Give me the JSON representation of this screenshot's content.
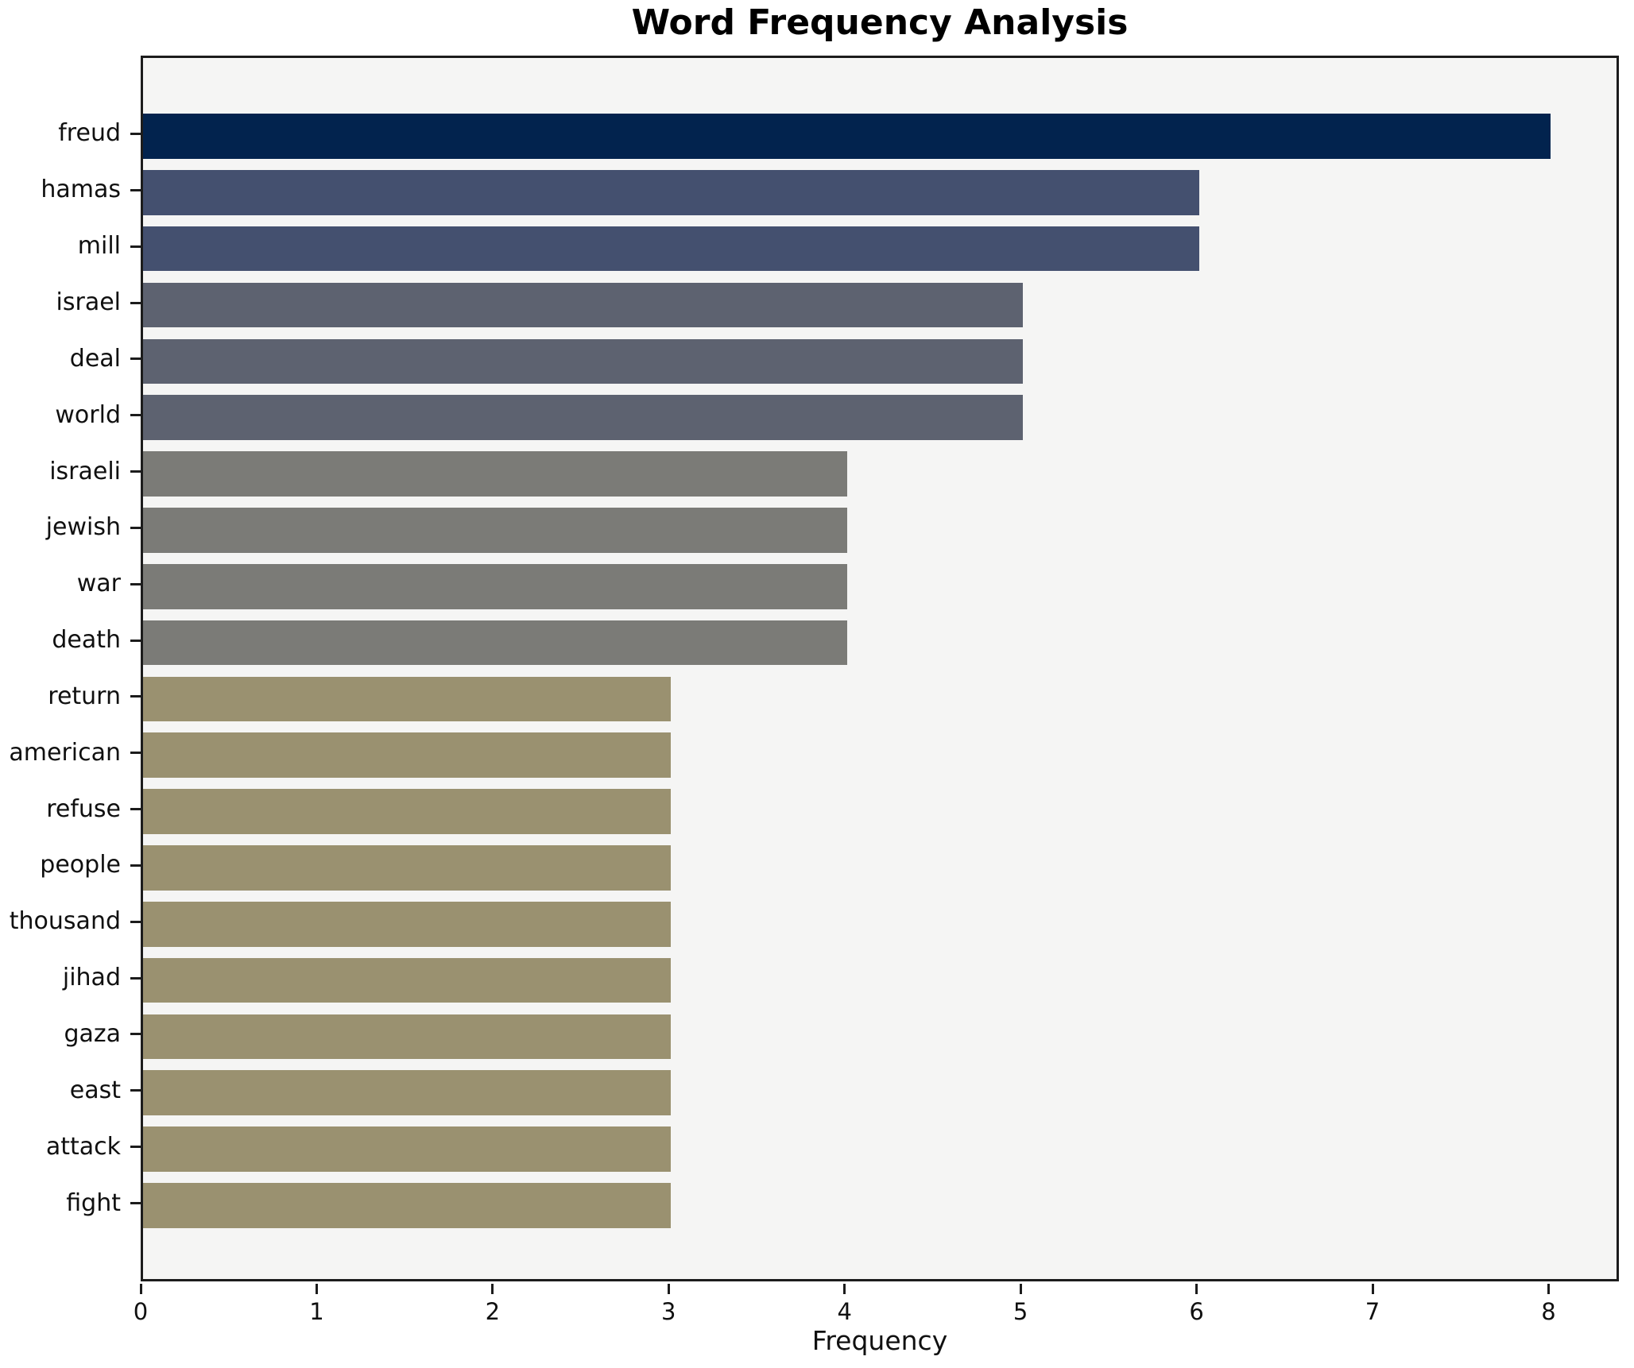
{
  "title": "Word Frequency Analysis",
  "chart_data": {
    "type": "bar",
    "orientation": "horizontal",
    "title": "Word Frequency Analysis",
    "xlabel": "Frequency",
    "ylabel": "",
    "categories": [
      "freud",
      "hamas",
      "mill",
      "israel",
      "deal",
      "world",
      "israeli",
      "jewish",
      "war",
      "death",
      "return",
      "american",
      "refuse",
      "people",
      "thousand",
      "jihad",
      "gaza",
      "east",
      "attack",
      "fight"
    ],
    "values": [
      8,
      6,
      6,
      5,
      5,
      5,
      4,
      4,
      4,
      4,
      3,
      3,
      3,
      3,
      3,
      3,
      3,
      3,
      3,
      3
    ],
    "bar_colors": [
      "#02234e",
      "#44506f",
      "#44506f",
      "#5d6270",
      "#5d6270",
      "#5d6270",
      "#7b7b77",
      "#7b7b77",
      "#7b7b77",
      "#7b7b77",
      "#9a9170",
      "#9a9170",
      "#9a9170",
      "#9a9170",
      "#9a9170",
      "#9a9170",
      "#9a9170",
      "#9a9170",
      "#9a9170",
      "#9a9170"
    ],
    "xlim": [
      0,
      8.4
    ],
    "xticks": [
      0,
      1,
      2,
      3,
      4,
      5,
      6,
      7,
      8
    ],
    "grid": false,
    "legend": "none",
    "colors": {
      "plot_background": "#f5f5f4",
      "figure_background": "#ffffff",
      "spine": "#1c1c1c",
      "text": "#101010"
    }
  }
}
